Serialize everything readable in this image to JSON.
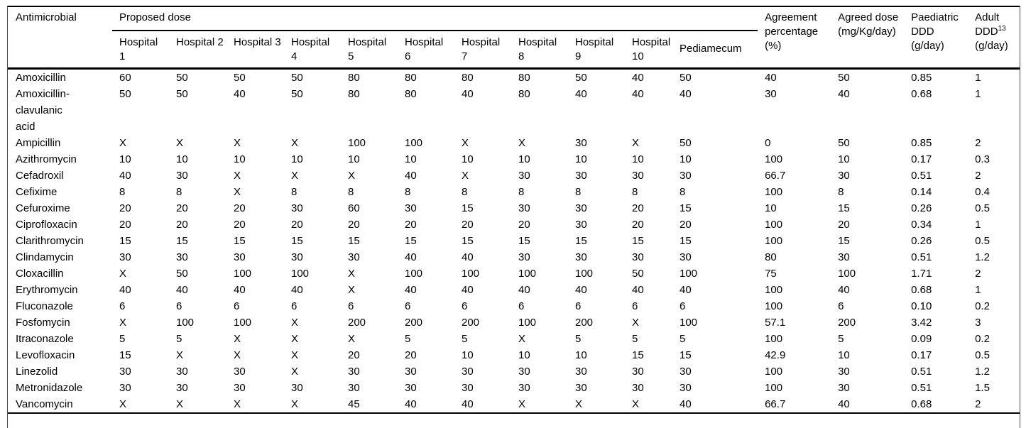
{
  "table": {
    "headers": {
      "antimicrobial": "Antimicrobial",
      "proposed_dose": "Proposed dose",
      "hospitals": [
        "Hospital 1",
        "Hospital 2",
        "Hospital 3",
        "Hospital 4",
        "Hospital 5",
        "Hospital 6",
        "Hospital 7",
        "Hospital 8",
        "Hospital 9",
        "Hospital 10"
      ],
      "pediamecum": "Pediamecum",
      "agreement": "Agreement percentage (%)",
      "agreed_dose": "Agreed dose (mg/Kg/day)",
      "paediatric_ddd": "Paediatric DDD (g/day)",
      "adult_ddd": {
        "text": "Adult DDD",
        "sup": "13",
        "unit": "(g/day)"
      }
    },
    "rows": [
      {
        "name": "Amoxicillin",
        "doses": [
          "60",
          "50",
          "50",
          "50",
          "80",
          "80",
          "80",
          "80",
          "50",
          "40",
          "50"
        ],
        "agreement_pct": "40",
        "agreed_dose": "50",
        "paediatric_ddd": "0.85",
        "adult_ddd": "1"
      },
      {
        "name": "Amoxicillin-\nclavulanic\nacid",
        "doses": [
          "50",
          "50",
          "40",
          "50",
          "80",
          "80",
          "40",
          "80",
          "40",
          "40",
          "40"
        ],
        "agreement_pct": "30",
        "agreed_dose": "40",
        "paediatric_ddd": "0.68",
        "adult_ddd": "1"
      },
      {
        "name": "Ampicillin",
        "doses": [
          "X",
          "X",
          "X",
          "X",
          "100",
          "100",
          "X",
          "X",
          "30",
          "X",
          "50"
        ],
        "agreement_pct": "0",
        "agreed_dose": "50",
        "paediatric_ddd": "0.85",
        "adult_ddd": "2"
      },
      {
        "name": "Azithromycin",
        "doses": [
          "10",
          "10",
          "10",
          "10",
          "10",
          "10",
          "10",
          "10",
          "10",
          "10",
          "10"
        ],
        "agreement_pct": "100",
        "agreed_dose": "10",
        "paediatric_ddd": "0.17",
        "adult_ddd": "0.3"
      },
      {
        "name": "Cefadroxil",
        "doses": [
          "40",
          "30",
          "X",
          "X",
          "X",
          "40",
          "X",
          "30",
          "30",
          "30",
          "30"
        ],
        "agreement_pct": "66.7",
        "agreed_dose": "30",
        "paediatric_ddd": "0.51",
        "adult_ddd": "2"
      },
      {
        "name": "Cefixime",
        "doses": [
          "8",
          "8",
          "X",
          "8",
          "8",
          "8",
          "8",
          "8",
          "8",
          "8",
          "8"
        ],
        "agreement_pct": "100",
        "agreed_dose": "8",
        "paediatric_ddd": "0.14",
        "adult_ddd": "0.4"
      },
      {
        "name": "Cefuroxime",
        "doses": [
          "20",
          "20",
          "20",
          "30",
          "60",
          "30",
          "15",
          "30",
          "30",
          "20",
          "15"
        ],
        "agreement_pct": "10",
        "agreed_dose": "15",
        "paediatric_ddd": "0.26",
        "adult_ddd": "0.5"
      },
      {
        "name": "Ciprofloxacin",
        "doses": [
          "20",
          "20",
          "20",
          "20",
          "20",
          "20",
          "20",
          "20",
          "30",
          "20",
          "20"
        ],
        "agreement_pct": "100",
        "agreed_dose": "20",
        "paediatric_ddd": "0.34",
        "adult_ddd": "1"
      },
      {
        "name": "Clarithromycin",
        "doses": [
          "15",
          "15",
          "15",
          "15",
          "15",
          "15",
          "15",
          "15",
          "15",
          "15",
          "15"
        ],
        "agreement_pct": "100",
        "agreed_dose": "15",
        "paediatric_ddd": "0.26",
        "adult_ddd": "0.5"
      },
      {
        "name": "Clindamycin",
        "doses": [
          "30",
          "30",
          "30",
          "30",
          "30",
          "40",
          "40",
          "30",
          "30",
          "30",
          "30"
        ],
        "agreement_pct": "80",
        "agreed_dose": "30",
        "paediatric_ddd": "0.51",
        "adult_ddd": "1.2"
      },
      {
        "name": "Cloxacillin",
        "doses": [
          "X",
          "50",
          "100",
          "100",
          "X",
          "100",
          "100",
          "100",
          "100",
          "50",
          "100"
        ],
        "agreement_pct": "75",
        "agreed_dose": "100",
        "paediatric_ddd": "1.71",
        "adult_ddd": "2"
      },
      {
        "name": "Erythromycin",
        "doses": [
          "40",
          "40",
          "40",
          "40",
          "X",
          "40",
          "40",
          "40",
          "40",
          "40",
          "40"
        ],
        "agreement_pct": "100",
        "agreed_dose": "40",
        "paediatric_ddd": "0.68",
        "adult_ddd": "1"
      },
      {
        "name": "Fluconazole",
        "doses": [
          "6",
          "6",
          "6",
          "6",
          "6",
          "6",
          "6",
          "6",
          "6",
          "6",
          "6"
        ],
        "agreement_pct": "100",
        "agreed_dose": "6",
        "paediatric_ddd": "0.10",
        "adult_ddd": "0.2"
      },
      {
        "name": "Fosfomycin",
        "doses": [
          "X",
          "100",
          "100",
          "X",
          "200",
          "200",
          "200",
          "100",
          "200",
          "X",
          "100"
        ],
        "agreement_pct": "57.1",
        "agreed_dose": "200",
        "paediatric_ddd": "3.42",
        "adult_ddd": "3"
      },
      {
        "name": "Itraconazole",
        "doses": [
          "5",
          "5",
          "X",
          "X",
          "X",
          "5",
          "5",
          "X",
          "5",
          "5",
          "5"
        ],
        "agreement_pct": "100",
        "agreed_dose": "5",
        "paediatric_ddd": "0.09",
        "adult_ddd": "0.2"
      },
      {
        "name": "Levofloxacin",
        "doses": [
          "15",
          "X",
          "X",
          "X",
          "20",
          "20",
          "10",
          "10",
          "10",
          "15",
          "15"
        ],
        "agreement_pct": "42.9",
        "agreed_dose": "10",
        "paediatric_ddd": "0.17",
        "adult_ddd": "0.5"
      },
      {
        "name": "Linezolid",
        "doses": [
          "30",
          "30",
          "30",
          "X",
          "30",
          "30",
          "30",
          "30",
          "30",
          "30",
          "30"
        ],
        "agreement_pct": "100",
        "agreed_dose": "30",
        "paediatric_ddd": "0.51",
        "adult_ddd": "1.2"
      },
      {
        "name": "Metronidazole",
        "doses": [
          "30",
          "30",
          "30",
          "30",
          "30",
          "30",
          "30",
          "30",
          "30",
          "30",
          "30"
        ],
        "agreement_pct": "100",
        "agreed_dose": "30",
        "paediatric_ddd": "0.51",
        "adult_ddd": "1.5"
      },
      {
        "name": "Vancomycin",
        "doses": [
          "X",
          "X",
          "X",
          "X",
          "45",
          "40",
          "40",
          "X",
          "X",
          "X",
          "40"
        ],
        "agreement_pct": "66.7",
        "agreed_dose": "40",
        "paediatric_ddd": "0.68",
        "adult_ddd": "2"
      }
    ]
  }
}
